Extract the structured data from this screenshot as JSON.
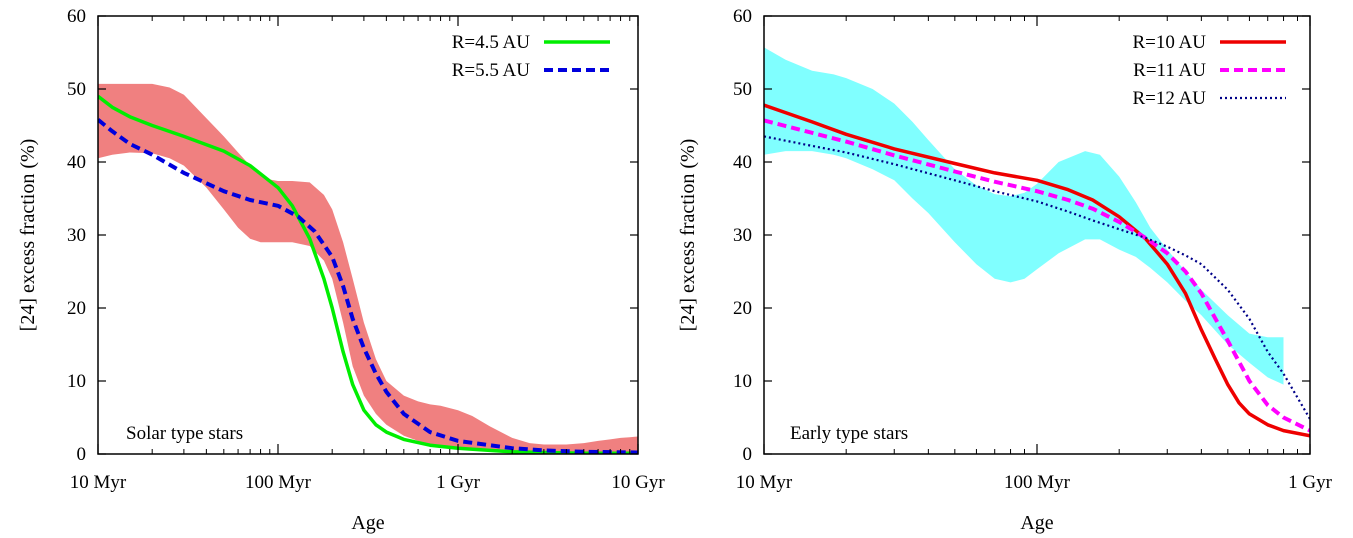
{
  "chart_data": [
    {
      "type": "line",
      "xlabel": "Age",
      "ylabel": "[24] excess fraction (%)",
      "x_scale": "log",
      "x_unit": "Myr",
      "xlim": [
        10,
        10000
      ],
      "ylim": [
        0,
        60
      ],
      "y_ticks": [
        0,
        10,
        20,
        30,
        40,
        50,
        60
      ],
      "x_ticks": [
        {
          "value": 10,
          "label": "10 Myr"
        },
        {
          "value": 100,
          "label": "100 Myr"
        },
        {
          "value": 1000,
          "label": "1 Gyr"
        },
        {
          "value": 10000,
          "label": "10 Gyr"
        }
      ],
      "annotation": "Solar type stars",
      "legend_position": "top-right",
      "band": {
        "color": "#f08080",
        "x": [
          10,
          12,
          15,
          20,
          25,
          30,
          40,
          50,
          60,
          70,
          80,
          90,
          100,
          120,
          150,
          180,
          200,
          230,
          260,
          300,
          350,
          400,
          500,
          600,
          700,
          800,
          1000,
          1200,
          1500,
          2000,
          2500,
          3000,
          4000,
          5000,
          6000,
          7000,
          8000,
          9000,
          10000
        ],
        "upper": [
          50.7,
          50.7,
          50.7,
          50.7,
          50.2,
          49.2,
          46,
          43.5,
          41.3,
          39.5,
          38.2,
          37.6,
          37.4,
          37.4,
          37.2,
          35.5,
          33.5,
          29,
          24,
          18,
          13,
          10,
          8,
          7.2,
          6.8,
          6.6,
          6,
          5.2,
          3.8,
          2.2,
          1.5,
          1.3,
          1.3,
          1.5,
          1.8,
          2,
          2.2,
          2.3,
          2.4
        ],
        "lower": [
          40.5,
          41,
          41.3,
          41.2,
          40.5,
          39.5,
          36.5,
          33.5,
          31,
          29.5,
          29,
          29,
          29,
          29,
          28.5,
          26.5,
          24,
          18,
          12,
          8,
          5.5,
          4,
          2.5,
          1.8,
          1.4,
          1.2,
          1,
          0.8,
          0.5,
          0.3,
          0.2,
          0.2,
          0.2,
          0.2,
          0.2,
          0.2,
          0.2,
          0.2,
          0.2
        ]
      },
      "series": [
        {
          "name": "R=4.5 AU",
          "color": "#00ee00",
          "style": "solid",
          "x": [
            10,
            12,
            15,
            20,
            30,
            50,
            70,
            100,
            120,
            150,
            180,
            200,
            230,
            260,
            300,
            350,
            400,
            500,
            700,
            1000,
            1500,
            2000,
            3000,
            5000,
            10000
          ],
          "y": [
            49,
            47.5,
            46.2,
            45,
            43.5,
            41.5,
            39.5,
            36.5,
            34,
            29.5,
            24,
            20,
            14,
            9.5,
            6,
            4,
            3,
            2,
            1.2,
            0.8,
            0.5,
            0.3,
            0.2,
            0.1,
            0.1
          ]
        },
        {
          "name": "R=5.5 AU",
          "color": "#0000dd",
          "style": "dashed",
          "x": [
            10,
            12,
            15,
            20,
            30,
            50,
            70,
            100,
            130,
            160,
            200,
            230,
            260,
            300,
            350,
            400,
            500,
            700,
            1000,
            1500,
            2000,
            3000,
            5000,
            10000
          ],
          "y": [
            45.8,
            44.2,
            42.5,
            41,
            38.5,
            36,
            34.8,
            34,
            32.5,
            30.5,
            27,
            23,
            18.5,
            14.5,
            11,
            8.5,
            5.5,
            3,
            1.8,
            1.2,
            0.8,
            0.5,
            0.3,
            0.2
          ]
        }
      ]
    },
    {
      "type": "line",
      "xlabel": "Age",
      "ylabel": "[24] excess fraction (%)",
      "x_scale": "log",
      "x_unit": "Myr",
      "xlim": [
        10,
        1000
      ],
      "ylim": [
        0,
        60
      ],
      "y_ticks": [
        0,
        10,
        20,
        30,
        40,
        50,
        60
      ],
      "x_ticks": [
        {
          "value": 10,
          "label": "10 Myr"
        },
        {
          "value": 100,
          "label": "100 Myr"
        },
        {
          "value": 1000,
          "label": "1 Gyr"
        }
      ],
      "annotation": "Early type stars",
      "legend_position": "top-right",
      "band": {
        "color": "#80ffff",
        "x": [
          10,
          12,
          15,
          18,
          20,
          25,
          30,
          35,
          40,
          50,
          60,
          70,
          80,
          90,
          100,
          120,
          150,
          170,
          200,
          230,
          260,
          300,
          350,
          400,
          500,
          600,
          700,
          800
        ],
        "upper": [
          55.7,
          54,
          52.5,
          52,
          51.5,
          50,
          48,
          45.5,
          43,
          39,
          36.8,
          35.6,
          35.3,
          35.8,
          37,
          40,
          41.5,
          41,
          38,
          34.5,
          31,
          28,
          25,
          22.5,
          19,
          16.5,
          16,
          16
        ],
        "lower": [
          41,
          41.5,
          41.5,
          41,
          40.5,
          39,
          37.5,
          35,
          33,
          29,
          26,
          24,
          23.5,
          24,
          25.3,
          27.5,
          29.4,
          29.4,
          28,
          27,
          25.5,
          23.5,
          21,
          19,
          15,
          12.5,
          10.5,
          9.5
        ]
      },
      "series": [
        {
          "name": "R=10 AU",
          "color": "#ee0000",
          "style": "solid",
          "x": [
            10,
            15,
            20,
            30,
            50,
            70,
            100,
            130,
            160,
            200,
            250,
            300,
            350,
            400,
            450,
            500,
            550,
            600,
            700,
            800,
            1000
          ],
          "y": [
            47.8,
            45.5,
            43.8,
            41.8,
            39.8,
            38.5,
            37.5,
            36.2,
            34.8,
            32.5,
            29.5,
            26,
            22,
            17,
            13,
            9.5,
            7,
            5.5,
            4,
            3.2,
            2.5
          ]
        },
        {
          "name": "R=11 AU",
          "color": "#ff00ff",
          "style": "dashed",
          "x": [
            10,
            15,
            20,
            30,
            50,
            70,
            100,
            130,
            160,
            200,
            250,
            300,
            350,
            400,
            500,
            600,
            700,
            800,
            1000
          ],
          "y": [
            45.7,
            44,
            42.8,
            40.9,
            38.7,
            37.3,
            36,
            34.8,
            33.6,
            31.8,
            29.6,
            27.5,
            25,
            22,
            15.5,
            10,
            6.7,
            5,
            3.2
          ]
        },
        {
          "name": "R=12 AU",
          "color": "#000088",
          "style": "dotted",
          "x": [
            10,
            15,
            20,
            30,
            50,
            70,
            100,
            130,
            160,
            200,
            250,
            300,
            350,
            400,
            500,
            600,
            700,
            800,
            1000
          ],
          "y": [
            43.5,
            42.2,
            41.3,
            39.7,
            37.5,
            36,
            34.6,
            33.2,
            32,
            30.8,
            29.6,
            28.4,
            27.2,
            26,
            22.5,
            18.5,
            14,
            11,
            4.8
          ]
        }
      ]
    }
  ]
}
